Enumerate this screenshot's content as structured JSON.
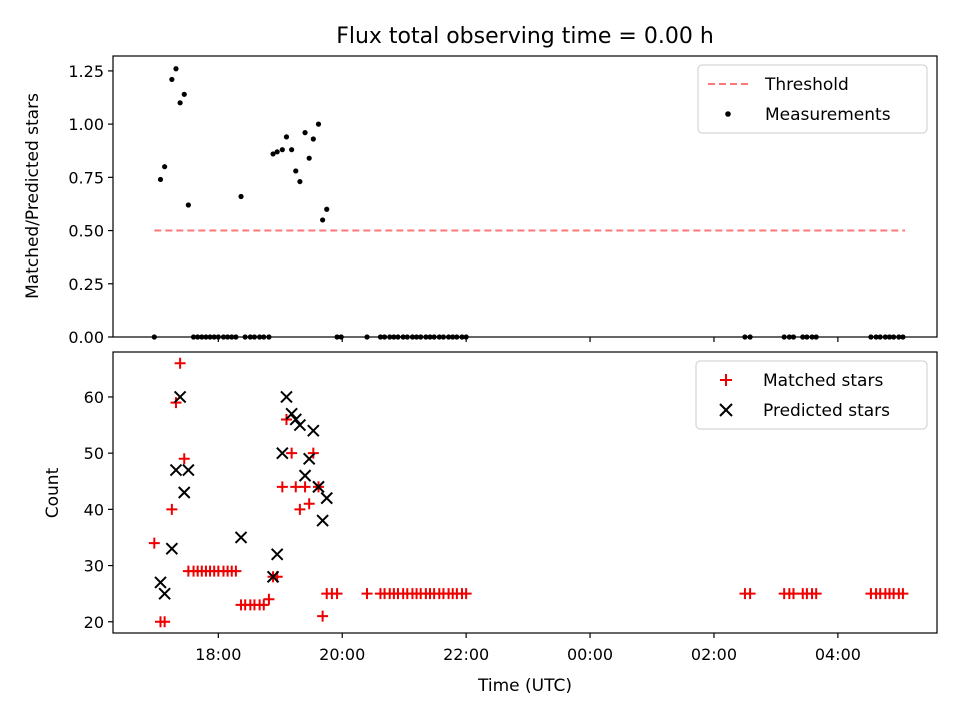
{
  "chart_data": {
    "title": "Flux total observing time = 0.00 h",
    "xlabel": "Time (UTC)",
    "x_ticks": [
      "18:00",
      "20:00",
      "22:00",
      "00:00",
      "02:00",
      "04:00"
    ],
    "colors": {
      "threshold": "#ff7777",
      "measurements": "#000000",
      "matched": "#ee0000",
      "predicted": "#000000"
    },
    "panels": [
      {
        "type": "scatter",
        "ylabel": "Matched/Predicted stars",
        "ylim": [
          0,
          1.32
        ],
        "y_ticks": [
          0.0,
          0.25,
          0.5,
          0.75,
          1.0,
          1.25
        ],
        "legend_position": "top-right",
        "threshold": {
          "name": "Threshold",
          "value": 0.5,
          "x_range": [
            "16:58",
            "05:05"
          ]
        },
        "series": [
          {
            "name": "Measurements",
            "marker": "dot",
            "points": [
              [
                "16:58",
                0
              ],
              [
                "17:04",
                0.74
              ],
              [
                "17:08",
                0.8
              ],
              [
                "17:15",
                1.21
              ],
              [
                "17:19",
                1.26
              ],
              [
                "17:23",
                1.1
              ],
              [
                "17:27",
                1.14
              ],
              [
                "17:31",
                0.62
              ],
              [
                "17:36",
                0
              ],
              [
                "17:40",
                0
              ],
              [
                "17:44",
                0
              ],
              [
                "17:48",
                0
              ],
              [
                "17:52",
                0
              ],
              [
                "17:56",
                0
              ],
              [
                "18:00",
                0
              ],
              [
                "18:05",
                0
              ],
              [
                "18:09",
                0
              ],
              [
                "18:13",
                0
              ],
              [
                "18:17",
                0
              ],
              [
                "18:22",
                0.66
              ],
              [
                "18:26",
                0
              ],
              [
                "18:31",
                0
              ],
              [
                "18:35",
                0
              ],
              [
                "18:40",
                0
              ],
              [
                "18:44",
                0
              ],
              [
                "18:49",
                0
              ],
              [
                "18:53",
                0.86
              ],
              [
                "18:57",
                0.87
              ],
              [
                "19:02",
                0.88
              ],
              [
                "19:06",
                0.94
              ],
              [
                "19:11",
                0.88
              ],
              [
                "19:15",
                0.78
              ],
              [
                "19:19",
                0.73
              ],
              [
                "19:24",
                0.96
              ],
              [
                "19:28",
                0.84
              ],
              [
                "19:32",
                0.93
              ],
              [
                "19:37",
                1.0
              ],
              [
                "19:41",
                0.55
              ],
              [
                "19:45",
                0.6
              ],
              [
                "19:55",
                0
              ],
              [
                "19:59",
                0
              ],
              [
                "20:24",
                0
              ],
              [
                "20:37",
                0
              ],
              [
                "20:41",
                0
              ],
              [
                "20:46",
                0
              ],
              [
                "20:50",
                0
              ],
              [
                "20:54",
                0
              ],
              [
                "20:59",
                0
              ],
              [
                "21:03",
                0
              ],
              [
                "21:08",
                0
              ],
              [
                "21:12",
                0
              ],
              [
                "21:16",
                0
              ],
              [
                "21:21",
                0
              ],
              [
                "21:25",
                0
              ],
              [
                "21:29",
                0
              ],
              [
                "21:34",
                0
              ],
              [
                "21:38",
                0
              ],
              [
                "21:43",
                0
              ],
              [
                "21:47",
                0
              ],
              [
                "21:51",
                0
              ],
              [
                "21:56",
                0
              ],
              [
                "22:00",
                0
              ],
              [
                "02:30",
                0
              ],
              [
                "02:35",
                0
              ],
              [
                "03:08",
                0
              ],
              [
                "03:13",
                0
              ],
              [
                "03:17",
                0
              ],
              [
                "03:26",
                0
              ],
              [
                "03:30",
                0
              ],
              [
                "03:35",
                0
              ],
              [
                "03:39",
                0
              ],
              [
                "04:32",
                0
              ],
              [
                "04:37",
                0
              ],
              [
                "04:41",
                0
              ],
              [
                "04:46",
                0
              ],
              [
                "04:50",
                0
              ],
              [
                "04:54",
                0
              ],
              [
                "04:59",
                0
              ],
              [
                "05:03",
                0
              ]
            ]
          }
        ]
      },
      {
        "type": "scatter",
        "ylabel": "Count",
        "ylim": [
          18,
          68
        ],
        "y_ticks": [
          20,
          30,
          40,
          50,
          60
        ],
        "legend_position": "top-right",
        "series": [
          {
            "name": "Matched stars",
            "marker": "plus",
            "points": [
              [
                "16:58",
                34
              ],
              [
                "17:04",
                20
              ],
              [
                "17:08",
                20
              ],
              [
                "17:15",
                40
              ],
              [
                "17:19",
                59
              ],
              [
                "17:23",
                66
              ],
              [
                "17:27",
                49
              ],
              [
                "17:31",
                29
              ],
              [
                "17:36",
                29
              ],
              [
                "17:40",
                29
              ],
              [
                "17:44",
                29
              ],
              [
                "17:48",
                29
              ],
              [
                "17:52",
                29
              ],
              [
                "17:56",
                29
              ],
              [
                "18:00",
                29
              ],
              [
                "18:05",
                29
              ],
              [
                "18:09",
                29
              ],
              [
                "18:13",
                29
              ],
              [
                "18:17",
                29
              ],
              [
                "18:22",
                23
              ],
              [
                "18:26",
                23
              ],
              [
                "18:31",
                23
              ],
              [
                "18:35",
                23
              ],
              [
                "18:40",
                23
              ],
              [
                "18:44",
                23
              ],
              [
                "18:49",
                24
              ],
              [
                "18:53",
                28
              ],
              [
                "18:57",
                28
              ],
              [
                "19:02",
                44
              ],
              [
                "19:06",
                56
              ],
              [
                "19:11",
                50
              ],
              [
                "19:15",
                44
              ],
              [
                "19:19",
                40
              ],
              [
                "19:24",
                44
              ],
              [
                "19:28",
                41
              ],
              [
                "19:32",
                50
              ],
              [
                "19:37",
                44
              ],
              [
                "19:41",
                21
              ],
              [
                "19:45",
                25
              ],
              [
                "19:50",
                25
              ],
              [
                "19:55",
                25
              ],
              [
                "20:24",
                25
              ],
              [
                "20:37",
                25
              ],
              [
                "20:41",
                25
              ],
              [
                "20:46",
                25
              ],
              [
                "20:50",
                25
              ],
              [
                "20:54",
                25
              ],
              [
                "20:59",
                25
              ],
              [
                "21:03",
                25
              ],
              [
                "21:08",
                25
              ],
              [
                "21:12",
                25
              ],
              [
                "21:16",
                25
              ],
              [
                "21:21",
                25
              ],
              [
                "21:25",
                25
              ],
              [
                "21:29",
                25
              ],
              [
                "21:34",
                25
              ],
              [
                "21:38",
                25
              ],
              [
                "21:43",
                25
              ],
              [
                "21:47",
                25
              ],
              [
                "21:51",
                25
              ],
              [
                "21:56",
                25
              ],
              [
                "22:00",
                25
              ],
              [
                "02:30",
                25
              ],
              [
                "02:35",
                25
              ],
              [
                "03:08",
                25
              ],
              [
                "03:13",
                25
              ],
              [
                "03:17",
                25
              ],
              [
                "03:26",
                25
              ],
              [
                "03:30",
                25
              ],
              [
                "03:35",
                25
              ],
              [
                "03:39",
                25
              ],
              [
                "04:32",
                25
              ],
              [
                "04:37",
                25
              ],
              [
                "04:41",
                25
              ],
              [
                "04:46",
                25
              ],
              [
                "04:50",
                25
              ],
              [
                "04:54",
                25
              ],
              [
                "04:59",
                25
              ],
              [
                "05:03",
                25
              ]
            ]
          },
          {
            "name": "Predicted stars",
            "marker": "x",
            "points": [
              [
                "17:04",
                27
              ],
              [
                "17:08",
                25
              ],
              [
                "17:15",
                33
              ],
              [
                "17:19",
                47
              ],
              [
                "17:23",
                60
              ],
              [
                "17:27",
                43
              ],
              [
                "17:31",
                47
              ],
              [
                "18:22",
                35
              ],
              [
                "18:53",
                28
              ],
              [
                "18:57",
                32
              ],
              [
                "19:02",
                50
              ],
              [
                "19:06",
                60
              ],
              [
                "19:11",
                57
              ],
              [
                "19:15",
                56
              ],
              [
                "19:19",
                55
              ],
              [
                "19:24",
                46
              ],
              [
                "19:28",
                49
              ],
              [
                "19:32",
                54
              ],
              [
                "19:37",
                44
              ],
              [
                "19:41",
                38
              ],
              [
                "19:45",
                42
              ]
            ]
          }
        ]
      }
    ]
  }
}
